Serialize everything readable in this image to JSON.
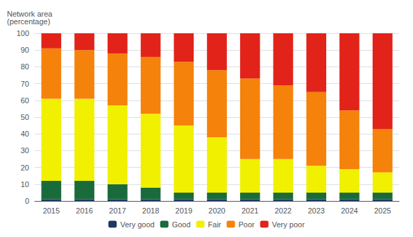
{
  "chart_data": {
    "type": "bar",
    "stacked": true,
    "grid": true,
    "legend": "bottom",
    "ylabel": "Network area\n(percentage)",
    "categories": [
      "2015",
      "2016",
      "2017",
      "2018",
      "2019",
      "2020",
      "2021",
      "2022",
      "2023",
      "2024",
      "2025"
    ],
    "series": [
      {
        "name": "Very good",
        "color": "#1f3864",
        "values": [
          1,
          1,
          1,
          1,
          1,
          1,
          1,
          1,
          1,
          1,
          1
        ]
      },
      {
        "name": "Good",
        "color": "#1a6b3c",
        "values": [
          11,
          11,
          9,
          7,
          4,
          4,
          4,
          4,
          4,
          4,
          4
        ]
      },
      {
        "name": "Fair",
        "color": "#f0f000",
        "values": [
          49,
          49,
          47,
          44,
          40,
          33,
          20,
          20,
          16,
          14,
          12
        ]
      },
      {
        "name": "Poor",
        "color": "#f5820a",
        "values": [
          30,
          29,
          31,
          34,
          38,
          40,
          48,
          44,
          44,
          35,
          26
        ]
      },
      {
        "name": "Very poor",
        "color": "#e2231a",
        "values": [
          9,
          10,
          12,
          14,
          17,
          22,
          27,
          31,
          35,
          46,
          57
        ]
      }
    ],
    "ylim": [
      0,
      100
    ],
    "yticks": [
      0,
      10,
      20,
      30,
      40,
      50,
      60,
      70,
      80,
      90,
      100
    ]
  }
}
